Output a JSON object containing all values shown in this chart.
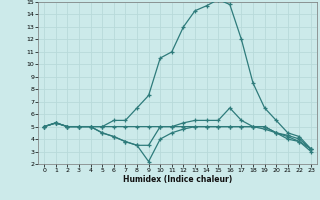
{
  "xlabel": "Humidex (Indice chaleur)",
  "bg_color": "#cceaea",
  "line_color": "#2e7b7b",
  "grid_color": "#b8dada",
  "xlim": [
    -0.5,
    23.5
  ],
  "ylim": [
    2,
    15
  ],
  "xticks": [
    0,
    1,
    2,
    3,
    4,
    5,
    6,
    7,
    8,
    9,
    10,
    11,
    12,
    13,
    14,
    15,
    16,
    17,
    18,
    19,
    20,
    21,
    22,
    23
  ],
  "yticks": [
    2,
    3,
    4,
    5,
    6,
    7,
    8,
    9,
    10,
    11,
    12,
    13,
    14,
    15
  ],
  "lines": [
    {
      "x": [
        0,
        1,
        2,
        3,
        4,
        5,
        6,
        7,
        8,
        9,
        10,
        11,
        12,
        13,
        14,
        15,
        16,
        17,
        18,
        19,
        20,
        21,
        22,
        23
      ],
      "y": [
        5.0,
        5.3,
        5.0,
        5.0,
        5.0,
        5.0,
        5.5,
        5.5,
        6.5,
        7.5,
        10.5,
        11.0,
        13.0,
        14.3,
        14.7,
        15.2,
        14.8,
        12.0,
        8.5,
        6.5,
        5.5,
        4.5,
        4.2,
        3.2
      ]
    },
    {
      "x": [
        0,
        1,
        2,
        3,
        4,
        5,
        6,
        7,
        8,
        9,
        10,
        11,
        12,
        13,
        14,
        15,
        16,
        17,
        18,
        19,
        20,
        21,
        22,
        23
      ],
      "y": [
        5.0,
        5.3,
        5.0,
        5.0,
        5.0,
        4.5,
        4.2,
        3.8,
        3.5,
        3.5,
        5.0,
        5.0,
        5.3,
        5.5,
        5.5,
        5.5,
        6.5,
        5.5,
        5.0,
        5.0,
        4.5,
        4.3,
        4.0,
        3.2
      ]
    },
    {
      "x": [
        0,
        1,
        2,
        3,
        4,
        5,
        6,
        7,
        8,
        9,
        10,
        11,
        12,
        13,
        14,
        15,
        16,
        17,
        18,
        19,
        20,
        21,
        22,
        23
      ],
      "y": [
        5.0,
        5.3,
        5.0,
        5.0,
        5.0,
        4.5,
        4.2,
        3.8,
        3.5,
        2.2,
        4.0,
        4.5,
        4.8,
        5.0,
        5.0,
        5.0,
        5.0,
        5.0,
        5.0,
        5.0,
        4.5,
        4.0,
        3.8,
        3.0
      ]
    },
    {
      "x": [
        0,
        1,
        2,
        3,
        4,
        5,
        6,
        7,
        8,
        9,
        10,
        11,
        12,
        13,
        14,
        15,
        16,
        17,
        18,
        19,
        20,
        21,
        22,
        23
      ],
      "y": [
        5.0,
        5.3,
        5.0,
        5.0,
        5.0,
        5.0,
        5.0,
        5.0,
        5.0,
        5.0,
        5.0,
        5.0,
        5.0,
        5.0,
        5.0,
        5.0,
        5.0,
        5.0,
        5.0,
        4.8,
        4.5,
        4.2,
        3.8,
        3.2
      ]
    }
  ]
}
